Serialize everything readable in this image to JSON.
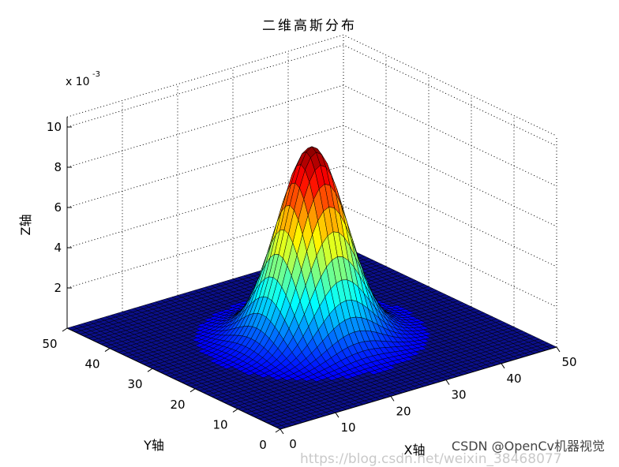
{
  "chart_data": {
    "type": "surface",
    "title": "二维高斯分布",
    "xlabel": "X轴",
    "ylabel": "Y轴",
    "zlabel": "Z轴",
    "x_ticks": [
      "0",
      "10",
      "20",
      "30",
      "40",
      "50"
    ],
    "y_ticks": [
      "0",
      "10",
      "20",
      "30",
      "40",
      "50"
    ],
    "z_ticks": [
      "2",
      "4",
      "6",
      "8",
      "10"
    ],
    "z_exponent_label": "x 10",
    "z_exponent_power": "-3",
    "xlim": [
      0,
      50
    ],
    "ylim": [
      0,
      50
    ],
    "zlim": [
      0,
      0.01
    ],
    "peak": {
      "x": 25,
      "y": 25,
      "z": 0.0095
    },
    "sigma": 5,
    "colormap": "jet",
    "grid": true,
    "background_color": "#ffffff",
    "floor_color": "#0b0f8a"
  },
  "watermark": "CSDN @OpenCv机器视觉",
  "watermark_url": "https://blog.csdn.net/weixin_38468077"
}
